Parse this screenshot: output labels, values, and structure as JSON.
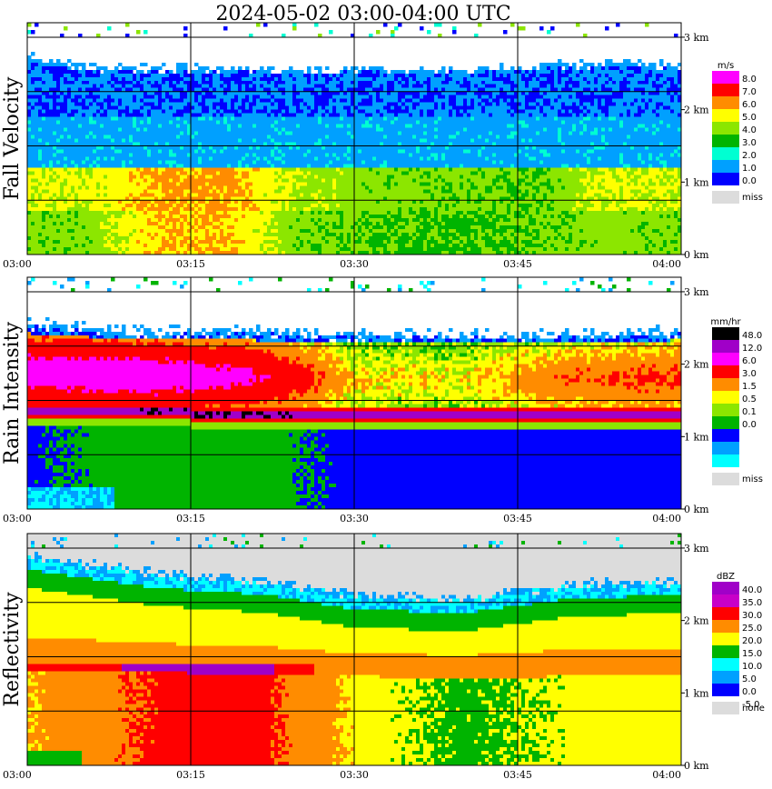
{
  "chart_data": {
    "type": "heatmap",
    "title": "2024-05-02   03:00-04:00 UTC",
    "x_ticks": [
      "03:00",
      "03:15",
      "03:30",
      "03:45",
      "04:00"
    ],
    "y_ticks": [
      "0 km",
      "1 km",
      "2 km",
      "3 km"
    ],
    "x_range": [
      "03:00",
      "04:00"
    ],
    "y_range_km": [
      0,
      3.2
    ],
    "grid": true,
    "panels": [
      {
        "name": "fall-velocity",
        "ylabel": "Fall Velocity",
        "unit": "m/s",
        "legend_labels": [
          "8.0",
          "7.0",
          "6.0",
          "5.0",
          "4.0",
          "3.0",
          "2.0",
          "1.0",
          "0.0"
        ],
        "missing_label": "miss",
        "colors": [
          "#ff00ff",
          "#ff0000",
          "#ff8c00",
          "#ffff00",
          "#8ce600",
          "#00b400",
          "#00ffd2",
          "#00a0ff",
          "#0000ff",
          "#dcdcdc"
        ],
        "levels": [
          {
            "t": 0,
            "top": 2.75,
            "b1": 1.18,
            "b2": 1.9,
            "speed_high": 5.2,
            "speed_low": 4.4
          },
          {
            "t": 5,
            "top": 2.6,
            "b1": 1.18,
            "b2": 1.9,
            "speed_high": 5.0,
            "speed_low": 4.2
          },
          {
            "t": 12,
            "top": 2.58,
            "b1": 1.18,
            "b2": 1.9,
            "speed_high": 6.2,
            "speed_low": 6.0
          },
          {
            "t": 18,
            "top": 2.55,
            "b1": 1.18,
            "b2": 1.9,
            "speed_high": 6.3,
            "speed_low": 6.1
          },
          {
            "t": 25,
            "top": 2.55,
            "b1": 1.18,
            "b2": 1.9,
            "speed_high": 4.8,
            "speed_low": 4.2
          },
          {
            "t": 32,
            "top": 2.55,
            "b1": 1.18,
            "b2": 1.9,
            "speed_high": 4.4,
            "speed_low": 4.0
          },
          {
            "t": 40,
            "top": 2.55,
            "b1": 1.18,
            "b2": 1.9,
            "speed_high": 4.2,
            "speed_low": 3.8
          },
          {
            "t": 47,
            "top": 2.6,
            "b1": 1.18,
            "b2": 1.9,
            "speed_high": 4.0,
            "speed_low": 4.0
          },
          {
            "t": 53,
            "top": 2.65,
            "b1": 1.18,
            "b2": 1.9,
            "speed_high": 5.2,
            "speed_low": 4.5
          },
          {
            "t": 60,
            "top": 2.6,
            "b1": 1.18,
            "b2": 1.9,
            "speed_high": 5.0,
            "speed_low": 4.2
          }
        ]
      },
      {
        "name": "rain-intensity",
        "ylabel": "Rain Intensity",
        "unit": "mm/hr",
        "legend_labels": [
          "48.0",
          "12.0",
          "6.0",
          "3.0",
          "1.5",
          "0.5",
          "0.1",
          "0.0"
        ],
        "missing_label": "miss",
        "colors": [
          "#000000",
          "#a000c8",
          "#ff00ff",
          "#ff0000",
          "#ff8c00",
          "#ffff00",
          "#8ce600",
          "#00b400",
          "#0000ff",
          "#00a0ff",
          "#00ffff",
          "#dcdcdc"
        ],
        "levels": [
          {
            "t": 0,
            "top": 2.55,
            "band": 1.35,
            "upper_mm": 8.0,
            "lower_mm": 0.4
          },
          {
            "t": 10,
            "top": 2.45,
            "band": 1.33,
            "upper_mm": 9.0,
            "lower_mm": 0.9
          },
          {
            "t": 20,
            "top": 2.45,
            "band": 1.32,
            "upper_mm": 7.0,
            "lower_mm": 0.9
          },
          {
            "t": 30,
            "top": 2.4,
            "band": 1.28,
            "upper_mm": 1.5,
            "lower_mm": 0.3
          },
          {
            "t": 40,
            "top": 2.4,
            "band": 1.28,
            "upper_mm": 1.2,
            "lower_mm": 0.3
          },
          {
            "t": 50,
            "top": 2.4,
            "band": 1.28,
            "upper_mm": 3.0,
            "lower_mm": 0.3
          },
          {
            "t": 60,
            "top": 2.45,
            "band": 1.28,
            "upper_mm": 3.5,
            "lower_mm": 0.4
          }
        ]
      },
      {
        "name": "reflectivity",
        "ylabel": "Reflectivity",
        "unit": "dBZ",
        "legend_labels": [
          "40.0",
          "35.0",
          "30.0",
          "25.0",
          "20.0",
          "15.0",
          "10.0",
          "5.0",
          "0.0",
          "-5.0"
        ],
        "missing_label": "none",
        "colors": [
          "#a000c8",
          "#c800c8",
          "#ff0000",
          "#ff8c00",
          "#ffff00",
          "#00b400",
          "#00ffff",
          "#00a0ff",
          "#0000ff",
          "#dcdcdc"
        ],
        "levels": [
          {
            "t": 0,
            "top": 2.55,
            "bright": 1.35,
            "peak_dbz": 30,
            "low_dbz": 23
          },
          {
            "t": 12,
            "top": 2.3,
            "bright": 1.35,
            "peak_dbz": 37,
            "low_dbz": 29
          },
          {
            "t": 22,
            "top": 2.2,
            "bright": 1.33,
            "peak_dbz": 36,
            "low_dbz": 29
          },
          {
            "t": 30,
            "top": 2.0,
            "bright": 1.3,
            "peak_dbz": 25,
            "low_dbz": 22
          },
          {
            "t": 40,
            "top": 1.95,
            "bright": 1.28,
            "peak_dbz": 23,
            "low_dbz": 19
          },
          {
            "t": 50,
            "top": 2.15,
            "bright": 1.3,
            "peak_dbz": 28,
            "low_dbz": 21
          },
          {
            "t": 60,
            "top": 2.2,
            "bright": 1.3,
            "peak_dbz": 30,
            "low_dbz": 22
          }
        ]
      }
    ]
  }
}
